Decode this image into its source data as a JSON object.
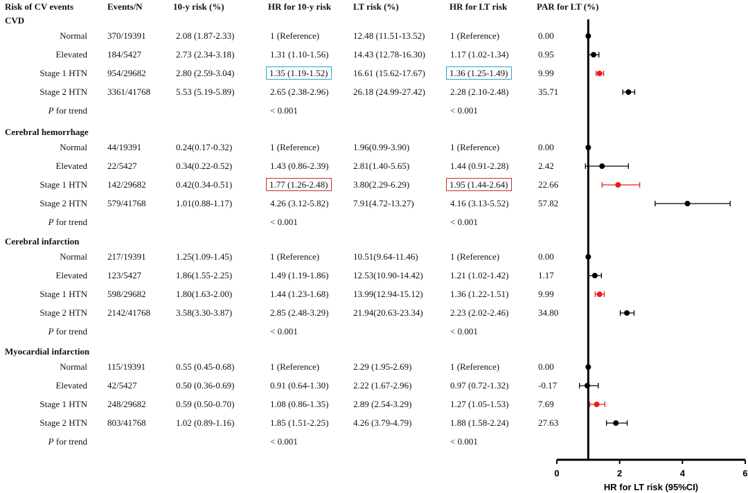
{
  "headers": {
    "risk": "Risk of CV events",
    "events": "Events/N",
    "risk10": "10-y risk (%)",
    "hr10": "HR for 10-y risk",
    "lt": "LT risk (%)",
    "hrlt": "HR for LT risk",
    "par": "PAR for LT (%)"
  },
  "colors": {
    "black": "#000000",
    "highlight": "#e3201c",
    "blue_box": "#29a3d6",
    "red_box": "#c0302a"
  },
  "sections": [
    {
      "title": "CVD",
      "rows": [
        {
          "label": "Normal",
          "events": "370/19391",
          "risk10": "2.08 (1.87-2.33)",
          "hr10": "1 (Reference)",
          "lt": "12.48 (11.51-13.52)",
          "hrlt": "1 (Reference)",
          "par": "0.00"
        },
        {
          "label": "Elevated",
          "events": "184/5427",
          "risk10": "2.73 (2.34-3.18)",
          "hr10": "1.31 (1.10-1.56)",
          "lt": "14.43 (12.78-16.30)",
          "hrlt": "1.17 (1.02-1.34)",
          "par": "0.95"
        },
        {
          "label": "Stage 1 HTN",
          "events": "954/29682",
          "risk10": "2.80 (2.59-3.04)",
          "hr10": "1.35 (1.19-1.52)",
          "lt": "16.61 (15.62-17.67)",
          "hrlt": "1.36 (1.25-1.49)",
          "par": "9.99",
          "box": "blue"
        },
        {
          "label": "Stage 2 HTN",
          "events": "3361/41768",
          "risk10": "5.53 (5.19-5.89)",
          "hr10": "2.65 (2.38-2.96)",
          "lt": "26.18 (24.99-27.42)",
          "hrlt": "2.28 (2.10-2.48)",
          "par": "35.71"
        }
      ],
      "trend": {
        "label_italic": "P",
        "label_rest": " for trend",
        "hr10": "< 0.001",
        "hrlt": "< 0.001"
      }
    },
    {
      "title": "Cerebral hemorrhage",
      "rows": [
        {
          "label": "Normal",
          "events": "44/19391",
          "risk10": "0.24(0.17-0.32)",
          "hr10": "1 (Reference)",
          "lt": "1.96(0.99-3.90)",
          "hrlt": "1 (Reference)",
          "par": "0.00"
        },
        {
          "label": "Elevated",
          "events": "22/5427",
          "risk10": "0.34(0.22-0.52)",
          "hr10": "1.43 (0.86-2.39)",
          "lt": "2.81(1.40-5.65)",
          "hrlt": "1.44 (0.91-2.28)",
          "par": "2.42"
        },
        {
          "label": "Stage 1 HTN",
          "events": "142/29682",
          "risk10": "0.42(0.34-0.51)",
          "hr10": "1.77 (1.26-2.48)",
          "lt": "3.80(2.29-6.29)",
          "hrlt": "1.95 (1.44-2.64)",
          "par": "22.66",
          "box": "red"
        },
        {
          "label": "Stage 2 HTN",
          "events": "579/41768",
          "risk10": "1.01(0.88-1.17)",
          "hr10": "4.26 (3.12-5.82)",
          "lt": "7.91(4.72-13.27)",
          "hrlt": "4.16 (3.13-5.52)",
          "par": "57.82"
        }
      ],
      "trend": {
        "label_italic": "P",
        "label_rest": " for trend",
        "hr10": "< 0.001",
        "hrlt": "< 0.001"
      }
    },
    {
      "title": "Cerebral infarction",
      "rows": [
        {
          "label": "Normal",
          "events": "217/19391",
          "risk10": "1.25(1.09-1.45)",
          "hr10": "1 (Reference)",
          "lt": "10.51(9.64-11.46)",
          "hrlt": "1 (Reference)",
          "par": "0.00"
        },
        {
          "label": "Elevated",
          "events": "123/5427",
          "risk10": "1.86(1.55-2.25)",
          "hr10": "1.49 (1.19-1.86)",
          "lt": "12.53(10.90-14.42)",
          "hrlt": "1.21 (1.02-1.42)",
          "par": "1.17"
        },
        {
          "label": "Stage 1 HTN",
          "events": "598/29682",
          "risk10": "1.80(1.63-2.00)",
          "hr10": "1.44 (1.23-1.68)",
          "lt": "13.99(12.94-15.12)",
          "hrlt": "1.36 (1.22-1.51)",
          "par": "9.99"
        },
        {
          "label": "Stage 2 HTN",
          "events": "2142/41768",
          "risk10": "3.58(3.30-3.87)",
          "hr10": "2.85 (2.48-3.29)",
          "lt": "21.94(20.63-23.34)",
          "hrlt": "2.23 (2.02-2.46)",
          "par": "34.80"
        }
      ],
      "trend": {
        "label_italic": "P",
        "label_rest": " for trend",
        "hr10": "< 0.001",
        "hrlt": "< 0.001"
      }
    },
    {
      "title": "Myocardial infarction",
      "rows": [
        {
          "label": "Normal",
          "events": "115/19391",
          "risk10": "0.55 (0.45-0.68)",
          "hr10": "1 (Reference)",
          "lt": "2.29 (1.95-2.69)",
          "hrlt": "1 (Reference)",
          "par": "0.00"
        },
        {
          "label": "Elevated",
          "events": "42/5427",
          "risk10": "0.50 (0.36-0.69)",
          "hr10": "0.91 (0.64-1.30)",
          "lt": "2.22 (1.67-2.96)",
          "hrlt": "0.97 (0.72-1.32)",
          "par": "-0.17"
        },
        {
          "label": "Stage 1 HTN",
          "events": "248/29682",
          "risk10": "0.59 (0.50-0.70)",
          "hr10": "1.08 (0.86-1.35)",
          "lt": "2.89 (2.54-3.29)",
          "hrlt": "1.27 (1.05-1.53)",
          "par": "7.69"
        },
        {
          "label": "Stage 2 HTN",
          "events": "803/41768",
          "risk10": "1.02 (0.89-1.16)",
          "hr10": "1.85 (1.51-2.25)",
          "lt": "4.26 (3.79-4.79)",
          "hrlt": "1.88 (1.58-2.24)",
          "par": "27.63"
        }
      ],
      "trend": {
        "label_italic": "P",
        "label_rest": " for trend",
        "hr10": "< 0.001",
        "hrlt": "< 0.001"
      }
    }
  ],
  "chart_data": {
    "type": "scatter",
    "title": "",
    "xlabel": "HR for LT risk (95%CI)",
    "ylabel": "",
    "xlim": [
      0,
      6
    ],
    "xticks": [
      "0",
      "2",
      "4",
      "6"
    ],
    "reference_line": 1,
    "grid": false,
    "points": [
      {
        "group": "CVD",
        "label": "Normal",
        "hr": 1.0,
        "lo": 1.0,
        "hi": 1.0,
        "highlight": false
      },
      {
        "group": "CVD",
        "label": "Elevated",
        "hr": 1.17,
        "lo": 1.02,
        "hi": 1.34,
        "highlight": false
      },
      {
        "group": "CVD",
        "label": "Stage 1 HTN",
        "hr": 1.36,
        "lo": 1.25,
        "hi": 1.49,
        "highlight": true
      },
      {
        "group": "CVD",
        "label": "Stage 2 HTN",
        "hr": 2.28,
        "lo": 2.1,
        "hi": 2.48,
        "highlight": false
      },
      {
        "group": "Cerebral hemorrhage",
        "label": "Normal",
        "hr": 1.0,
        "lo": 1.0,
        "hi": 1.0,
        "highlight": false
      },
      {
        "group": "Cerebral hemorrhage",
        "label": "Elevated",
        "hr": 1.44,
        "lo": 0.91,
        "hi": 2.28,
        "highlight": false
      },
      {
        "group": "Cerebral hemorrhage",
        "label": "Stage 1 HTN",
        "hr": 1.95,
        "lo": 1.44,
        "hi": 2.64,
        "highlight": true
      },
      {
        "group": "Cerebral hemorrhage",
        "label": "Stage 2 HTN",
        "hr": 4.16,
        "lo": 3.13,
        "hi": 5.52,
        "highlight": false
      },
      {
        "group": "Cerebral infarction",
        "label": "Normal",
        "hr": 1.0,
        "lo": 1.0,
        "hi": 1.0,
        "highlight": false
      },
      {
        "group": "Cerebral infarction",
        "label": "Elevated",
        "hr": 1.21,
        "lo": 1.02,
        "hi": 1.42,
        "highlight": false
      },
      {
        "group": "Cerebral infarction",
        "label": "Stage 1 HTN",
        "hr": 1.36,
        "lo": 1.22,
        "hi": 1.51,
        "highlight": true
      },
      {
        "group": "Cerebral infarction",
        "label": "Stage 2 HTN",
        "hr": 2.23,
        "lo": 2.02,
        "hi": 2.46,
        "highlight": false
      },
      {
        "group": "Myocardial infarction",
        "label": "Normal",
        "hr": 1.0,
        "lo": 1.0,
        "hi": 1.0,
        "highlight": false
      },
      {
        "group": "Myocardial infarction",
        "label": "Elevated",
        "hr": 0.97,
        "lo": 0.72,
        "hi": 1.32,
        "highlight": false
      },
      {
        "group": "Myocardial infarction",
        "label": "Stage 1 HTN",
        "hr": 1.27,
        "lo": 1.05,
        "hi": 1.53,
        "highlight": true
      },
      {
        "group": "Myocardial infarction",
        "label": "Stage 2 HTN",
        "hr": 1.88,
        "lo": 1.58,
        "hi": 2.24,
        "highlight": false
      }
    ]
  }
}
